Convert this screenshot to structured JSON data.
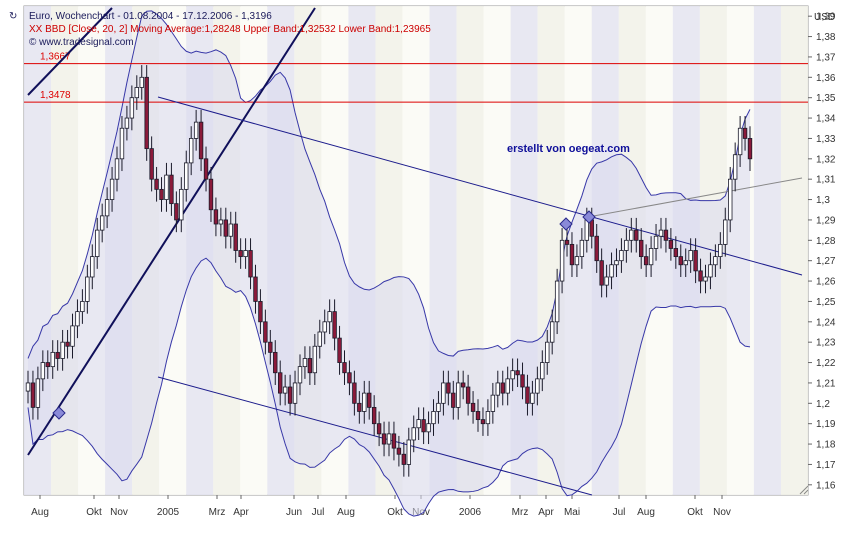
{
  "legend": {
    "line1": "Euro, Wochenchart - 01.08.2004 - 17.12.2006 - 1,3196",
    "line2": "XX BBD [Close, 20, 2] Moving Average:1,28248 Upper Band:1,32532 Lower Band:1,23965",
    "line3": "© www.tradesignal.com",
    "icon": "↻"
  },
  "chart_data": {
    "type": "candlestick",
    "currency_label": "USD",
    "annotation": "erstellt von oegeat.com",
    "ylim": [
      1.155,
      1.395
    ],
    "y_ticks": [
      "1,16",
      "1,17",
      "1,18",
      "1,19",
      "1,2",
      "1,21",
      "1,22",
      "1,23",
      "1,24",
      "1,25",
      "1,26",
      "1,27",
      "1,28",
      "1,29",
      "1,3",
      "1,31",
      "1,32",
      "1,33",
      "1,34",
      "1,35",
      "1,36",
      "1,37",
      "1,38",
      "1,39"
    ],
    "x_labels": [
      "Aug",
      "Okt",
      "Nov",
      "2005",
      "Mrz",
      "Apr",
      "Jun",
      "Jul",
      "Aug",
      "Okt",
      "Nov",
      "2006",
      "Mrz",
      "Apr",
      "Mai",
      "Jul",
      "Aug",
      "Okt",
      "Nov"
    ],
    "horizontal_lines": [
      {
        "label": "1,3667",
        "value": 1.3667,
        "color": "#dd0000"
      },
      {
        "label": "1,3478",
        "value": 1.3478,
        "color": "#dd0000"
      }
    ],
    "closes": [
      1.21,
      1.198,
      1.212,
      1.22,
      1.218,
      1.225,
      1.222,
      1.23,
      1.228,
      1.238,
      1.245,
      1.25,
      1.262,
      1.272,
      1.285,
      1.292,
      1.3,
      1.31,
      1.32,
      1.335,
      1.34,
      1.35,
      1.355,
      1.36,
      1.325,
      1.31,
      1.305,
      1.3,
      1.312,
      1.298,
      1.29,
      1.305,
      1.318,
      1.33,
      1.338,
      1.32,
      1.31,
      1.295,
      1.288,
      1.29,
      1.282,
      1.288,
      1.275,
      1.272,
      1.275,
      1.262,
      1.25,
      1.24,
      1.23,
      1.225,
      1.215,
      1.205,
      1.208,
      1.2,
      1.21,
      1.218,
      1.222,
      1.215,
      1.228,
      1.235,
      1.24,
      1.245,
      1.232,
      1.22,
      1.215,
      1.21,
      1.2,
      1.196,
      1.205,
      1.198,
      1.19,
      1.185,
      1.18,
      1.185,
      1.178,
      1.175,
      1.17,
      1.182,
      1.188,
      1.192,
      1.186,
      1.19,
      1.196,
      1.2,
      1.21,
      1.205,
      1.198,
      1.21,
      1.208,
      1.2,
      1.196,
      1.192,
      1.19,
      1.196,
      1.204,
      1.21,
      1.205,
      1.212,
      1.216,
      1.214,
      1.208,
      1.2,
      1.205,
      1.212,
      1.22,
      1.23,
      1.24,
      1.26,
      1.28,
      1.278,
      1.268,
      1.272,
      1.28,
      1.29,
      1.282,
      1.27,
      1.258,
      1.262,
      1.268,
      1.27,
      1.275,
      1.28,
      1.285,
      1.28,
      1.272,
      1.268,
      1.276,
      1.282,
      1.285,
      1.28,
      1.276,
      1.272,
      1.268,
      1.27,
      1.275,
      1.265,
      1.26,
      1.262,
      1.268,
      1.272,
      1.278,
      1.29,
      1.31,
      1.322,
      1.335,
      1.33,
      1.32
    ]
  }
}
